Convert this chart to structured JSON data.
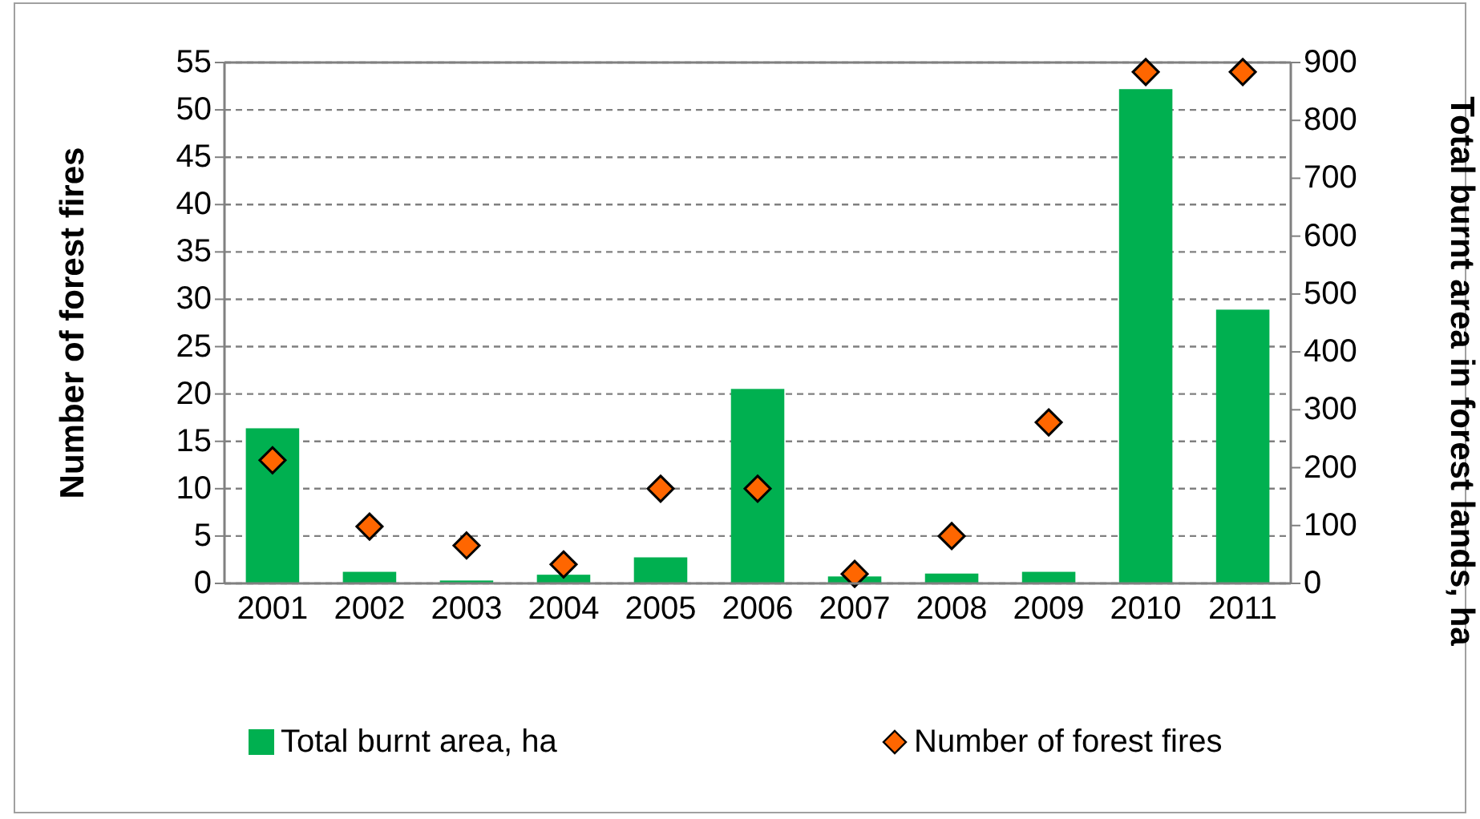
{
  "chart_data": {
    "type": "bar",
    "categories": [
      "2001",
      "2002",
      "2003",
      "2004",
      "2005",
      "2006",
      "2007",
      "2008",
      "2009",
      "2010",
      "2011"
    ],
    "ylabel": "Number of forest fires",
    "y2label": "Total burnt area in forest lands, ha",
    "ylim": [
      0,
      55
    ],
    "yticks": [
      0,
      5,
      10,
      15,
      20,
      25,
      30,
      35,
      40,
      45,
      50,
      55
    ],
    "y2lim": [
      0,
      900
    ],
    "y2ticks": [
      0,
      100,
      200,
      300,
      400,
      500,
      600,
      700,
      800,
      900
    ],
    "grid": "y",
    "legend": "bottom",
    "series": [
      {
        "name": "Total burnt area, ha",
        "axis": "y2",
        "color": "#00b050",
        "values": [
          268,
          20,
          5,
          15,
          45,
          336,
          12,
          17,
          20,
          854,
          473
        ]
      },
      {
        "name": "Number of forest fires",
        "type": "scatter",
        "marker": "diamond",
        "color": "#ff6600",
        "values": [
          13,
          6,
          4,
          2,
          10,
          10,
          1,
          5,
          17,
          54,
          54
        ]
      }
    ]
  }
}
